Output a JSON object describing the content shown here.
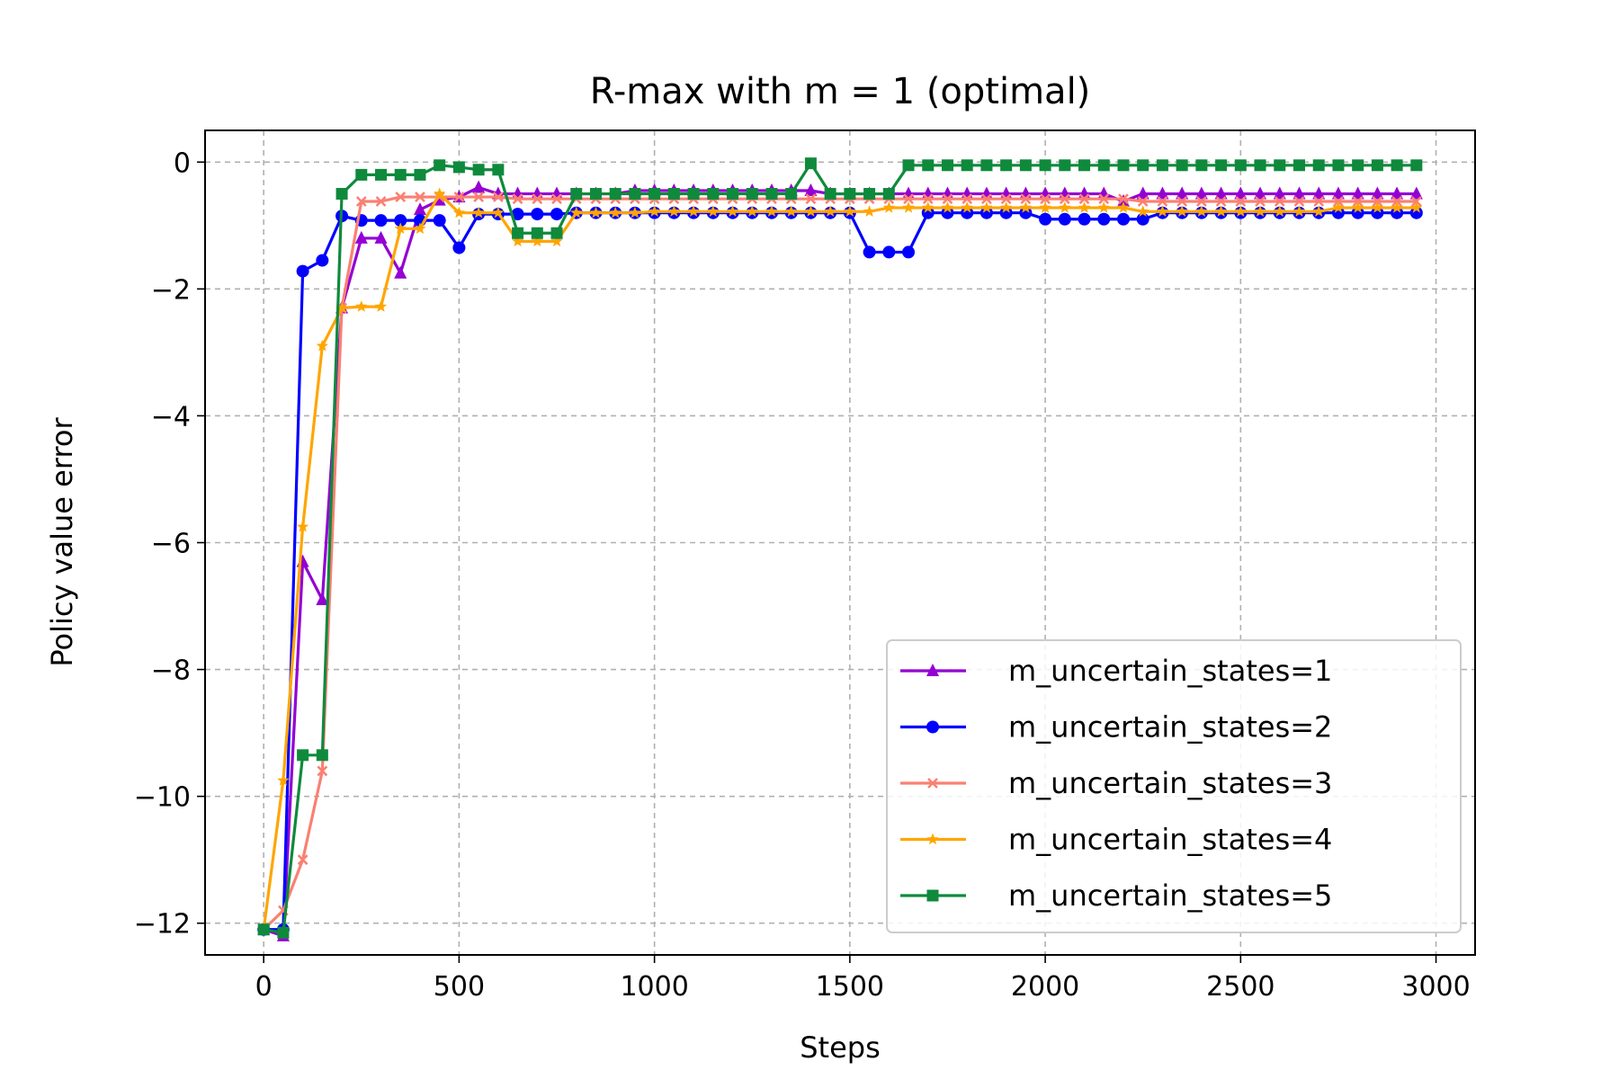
{
  "chart_data": {
    "type": "line",
    "title": "R-max with m = 1 (optimal)",
    "xlabel": "Steps",
    "ylabel": "Policy value error",
    "xlim": [
      -150,
      3100
    ],
    "ylim": [
      -12.5,
      0.5
    ],
    "xticks": [
      0,
      500,
      1000,
      1500,
      2000,
      2500,
      3000
    ],
    "xtick_labels": [
      "0",
      "500",
      "1000",
      "1500",
      "2000",
      "2500",
      "3000"
    ],
    "yticks": [
      0,
      -2,
      -4,
      -6,
      -8,
      -10,
      -12
    ],
    "ytick_labels": [
      "0",
      "−2",
      "−4",
      "−6",
      "−8",
      "−10",
      "−12"
    ],
    "grid": true,
    "legend_position": "lower-right",
    "series": [
      {
        "name": "m_uncertain_states=1",
        "color": "#9400d3",
        "marker": "triangle",
        "x": [
          0,
          50,
          100,
          150,
          200,
          250,
          300,
          350,
          400,
          450,
          500,
          550,
          600,
          650,
          700,
          750,
          800,
          850,
          900,
          950,
          1000,
          1050,
          1100,
          1150,
          1200,
          1250,
          1300,
          1350,
          1400,
          1450,
          1500,
          1550,
          1600,
          1650,
          1700,
          1750,
          1800,
          1850,
          1900,
          1950,
          2000,
          2050,
          2100,
          2150,
          2200,
          2250,
          2300,
          2350,
          2400,
          2450,
          2500,
          2550,
          2600,
          2650,
          2700,
          2750,
          2800,
          2850,
          2900,
          2950
        ],
        "y": [
          -12.1,
          -12.2,
          -6.3,
          -6.9,
          -2.3,
          -1.2,
          -1.2,
          -1.75,
          -0.75,
          -0.6,
          -0.55,
          -0.4,
          -0.5,
          -0.5,
          -0.5,
          -0.5,
          -0.5,
          -0.5,
          -0.5,
          -0.45,
          -0.45,
          -0.45,
          -0.45,
          -0.45,
          -0.45,
          -0.45,
          -0.45,
          -0.45,
          -0.45,
          -0.5,
          -0.5,
          -0.5,
          -0.5,
          -0.5,
          -0.5,
          -0.5,
          -0.5,
          -0.5,
          -0.5,
          -0.5,
          -0.5,
          -0.5,
          -0.5,
          -0.5,
          -0.62,
          -0.5,
          -0.5,
          -0.5,
          -0.5,
          -0.5,
          -0.5,
          -0.5,
          -0.5,
          -0.5,
          -0.5,
          -0.5,
          -0.5,
          -0.5,
          -0.5,
          -0.5
        ]
      },
      {
        "name": "m_uncertain_states=2",
        "color": "#0000ff",
        "marker": "circle",
        "x": [
          0,
          50,
          100,
          150,
          200,
          250,
          300,
          350,
          400,
          450,
          500,
          550,
          600,
          650,
          700,
          750,
          800,
          850,
          900,
          950,
          1000,
          1050,
          1100,
          1150,
          1200,
          1250,
          1300,
          1350,
          1400,
          1450,
          1500,
          1550,
          1600,
          1650,
          1700,
          1750,
          1800,
          1850,
          1900,
          1950,
          2000,
          2050,
          2100,
          2150,
          2200,
          2250,
          2300,
          2350,
          2400,
          2450,
          2500,
          2550,
          2600,
          2650,
          2700,
          2750,
          2800,
          2850,
          2900,
          2950
        ],
        "y": [
          -12.1,
          -12.1,
          -1.72,
          -1.55,
          -0.85,
          -0.92,
          -0.92,
          -0.92,
          -0.92,
          -0.92,
          -1.35,
          -0.82,
          -0.82,
          -0.82,
          -0.82,
          -0.82,
          -0.8,
          -0.8,
          -0.8,
          -0.8,
          -0.8,
          -0.8,
          -0.8,
          -0.8,
          -0.8,
          -0.8,
          -0.8,
          -0.8,
          -0.8,
          -0.8,
          -0.8,
          -1.42,
          -1.42,
          -1.42,
          -0.8,
          -0.8,
          -0.8,
          -0.8,
          -0.8,
          -0.8,
          -0.9,
          -0.9,
          -0.9,
          -0.9,
          -0.9,
          -0.9,
          -0.8,
          -0.8,
          -0.8,
          -0.8,
          -0.8,
          -0.8,
          -0.8,
          -0.8,
          -0.8,
          -0.8,
          -0.8,
          -0.8,
          -0.8,
          -0.8
        ]
      },
      {
        "name": "m_uncertain_states=3",
        "color": "#fa8072",
        "marker": "x",
        "x": [
          0,
          50,
          100,
          150,
          200,
          250,
          300,
          350,
          400,
          450,
          500,
          550,
          600,
          650,
          700,
          750,
          800,
          850,
          900,
          950,
          1000,
          1050,
          1100,
          1150,
          1200,
          1250,
          1300,
          1350,
          1400,
          1450,
          1500,
          1550,
          1600,
          1650,
          1700,
          1750,
          1800,
          1850,
          1900,
          1950,
          2000,
          2050,
          2100,
          2150,
          2200,
          2250,
          2300,
          2350,
          2400,
          2450,
          2500,
          2550,
          2600,
          2650,
          2700,
          2750,
          2800,
          2850,
          2900,
          2950
        ],
        "y": [
          -12.1,
          -11.8,
          -11.0,
          -9.6,
          -2.3,
          -0.62,
          -0.62,
          -0.55,
          -0.55,
          -0.55,
          -0.55,
          -0.55,
          -0.55,
          -0.58,
          -0.58,
          -0.58,
          -0.58,
          -0.58,
          -0.58,
          -0.58,
          -0.58,
          -0.58,
          -0.58,
          -0.58,
          -0.58,
          -0.58,
          -0.58,
          -0.58,
          -0.58,
          -0.58,
          -0.58,
          -0.58,
          -0.58,
          -0.58,
          -0.58,
          -0.58,
          -0.58,
          -0.58,
          -0.58,
          -0.58,
          -0.58,
          -0.58,
          -0.58,
          -0.58,
          -0.58,
          -0.62,
          -0.62,
          -0.62,
          -0.62,
          -0.62,
          -0.62,
          -0.62,
          -0.62,
          -0.62,
          -0.62,
          -0.62,
          -0.62,
          -0.62,
          -0.62,
          -0.62
        ]
      },
      {
        "name": "m_uncertain_states=4",
        "color": "#ffa500",
        "marker": "star",
        "x": [
          0,
          50,
          100,
          150,
          200,
          250,
          300,
          350,
          400,
          450,
          500,
          550,
          600,
          650,
          700,
          750,
          800,
          850,
          900,
          950,
          1000,
          1050,
          1100,
          1150,
          1200,
          1250,
          1300,
          1350,
          1400,
          1450,
          1500,
          1550,
          1600,
          1650,
          1700,
          1750,
          1800,
          1850,
          1900,
          1950,
          2000,
          2050,
          2100,
          2150,
          2200,
          2250,
          2300,
          2350,
          2400,
          2450,
          2500,
          2550,
          2600,
          2650,
          2700,
          2750,
          2800,
          2850,
          2900,
          2950
        ],
        "y": [
          -12.1,
          -9.75,
          -5.75,
          -2.9,
          -2.3,
          -2.28,
          -2.28,
          -1.05,
          -1.05,
          -0.5,
          -0.8,
          -0.8,
          -0.8,
          -1.25,
          -1.25,
          -1.25,
          -0.8,
          -0.8,
          -0.8,
          -0.8,
          -0.78,
          -0.78,
          -0.78,
          -0.78,
          -0.78,
          -0.78,
          -0.78,
          -0.78,
          -0.78,
          -0.78,
          -0.78,
          -0.78,
          -0.72,
          -0.72,
          -0.72,
          -0.72,
          -0.72,
          -0.72,
          -0.72,
          -0.72,
          -0.72,
          -0.72,
          -0.72,
          -0.72,
          -0.72,
          -0.78,
          -0.78,
          -0.78,
          -0.78,
          -0.78,
          -0.78,
          -0.78,
          -0.78,
          -0.78,
          -0.78,
          -0.72,
          -0.72,
          -0.72,
          -0.72,
          -0.72
        ]
      },
      {
        "name": "m_uncertain_states=5",
        "color": "#0f8a3c",
        "marker": "square",
        "x": [
          0,
          50,
          100,
          150,
          200,
          250,
          300,
          350,
          400,
          450,
          500,
          550,
          600,
          650,
          700,
          750,
          800,
          850,
          900,
          950,
          1000,
          1050,
          1100,
          1150,
          1200,
          1250,
          1300,
          1350,
          1400,
          1450,
          1500,
          1550,
          1600,
          1650,
          1700,
          1750,
          1800,
          1850,
          1900,
          1950,
          2000,
          2050,
          2100,
          2150,
          2200,
          2250,
          2300,
          2350,
          2400,
          2450,
          2500,
          2550,
          2600,
          2650,
          2700,
          2750,
          2800,
          2850,
          2900,
          2950
        ],
        "y": [
          -12.1,
          -12.15,
          -9.35,
          -9.35,
          -0.5,
          -0.2,
          -0.2,
          -0.2,
          -0.2,
          -0.05,
          -0.08,
          -0.12,
          -0.12,
          -1.12,
          -1.12,
          -1.12,
          -0.5,
          -0.5,
          -0.5,
          -0.5,
          -0.5,
          -0.5,
          -0.5,
          -0.5,
          -0.5,
          -0.5,
          -0.5,
          -0.5,
          -0.02,
          -0.5,
          -0.5,
          -0.5,
          -0.5,
          -0.05,
          -0.05,
          -0.05,
          -0.05,
          -0.05,
          -0.05,
          -0.05,
          -0.05,
          -0.05,
          -0.05,
          -0.05,
          -0.05,
          -0.05,
          -0.05,
          -0.05,
          -0.05,
          -0.05,
          -0.05,
          -0.05,
          -0.05,
          -0.05,
          -0.05,
          -0.05,
          -0.05,
          -0.05,
          -0.05,
          -0.05
        ]
      }
    ]
  }
}
